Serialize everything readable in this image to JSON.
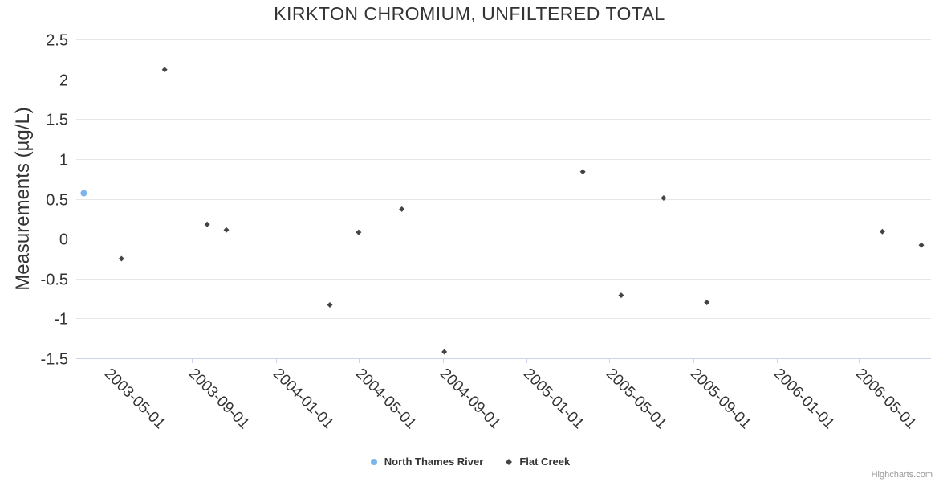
{
  "chart_data": {
    "type": "scatter",
    "title": "KIRKTON CHROMIUM, UNFILTERED TOTAL",
    "xlabel": "",
    "ylabel": "Measurements (µg/L)",
    "ylim": [
      -1.5,
      2.5
    ],
    "y_ticks": [
      "2.5",
      "2",
      "1.5",
      "1",
      "0.5",
      "0",
      "-0.5",
      "-1",
      "-1.5"
    ],
    "x_ticks": [
      "2003-05-01",
      "2003-09-01",
      "2004-01-01",
      "2004-05-01",
      "2004-09-01",
      "2005-01-01",
      "2005-05-01",
      "2005-09-01",
      "2006-01-01",
      "2006-05-01"
    ],
    "x_range": [
      "2003-03-16",
      "2006-08-14"
    ],
    "grid": "horizontal-only",
    "legend_position": "bottom-center",
    "series": [
      {
        "name": "North Thames River",
        "color": "#7cb5ec",
        "marker": "circle",
        "points": [
          {
            "x": "2003-03-27",
            "y": 0.57
          }
        ]
      },
      {
        "name": "Flat Creek",
        "color": "#434348",
        "marker": "diamond",
        "points": [
          {
            "x": "2003-05-21",
            "y": -0.25
          },
          {
            "x": "2003-07-23",
            "y": 2.12
          },
          {
            "x": "2003-09-23",
            "y": 0.18
          },
          {
            "x": "2003-10-21",
            "y": 0.11
          },
          {
            "x": "2004-03-20",
            "y": -0.83
          },
          {
            "x": "2004-05-01",
            "y": 0.08
          },
          {
            "x": "2004-07-03",
            "y": 0.37
          },
          {
            "x": "2004-09-03",
            "y": -1.42
          },
          {
            "x": "2005-03-24",
            "y": 0.84
          },
          {
            "x": "2005-05-19",
            "y": -0.71
          },
          {
            "x": "2005-07-20",
            "y": 0.51
          },
          {
            "x": "2005-09-21",
            "y": -0.8
          },
          {
            "x": "2006-06-04",
            "y": 0.09
          },
          {
            "x": "2006-07-31",
            "y": -0.08
          }
        ]
      }
    ]
  },
  "credit": {
    "label": "Highcharts.com"
  },
  "colors": {
    "background": "#ffffff",
    "grid_line": "#e6e6e6",
    "axis_line": "#ccd6eb",
    "text": "#333333",
    "credit_text": "#999999"
  }
}
